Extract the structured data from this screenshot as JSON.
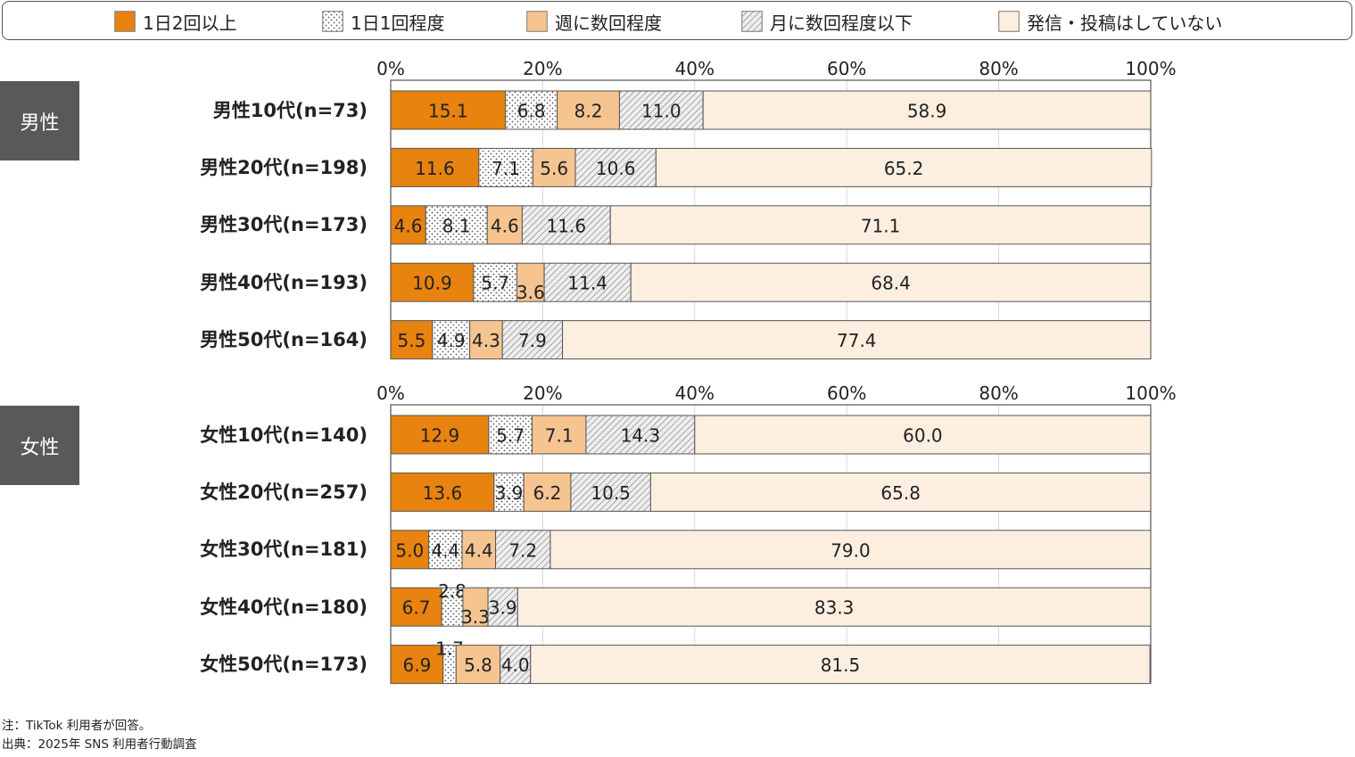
{
  "chart_data": {
    "type": "bar",
    "orientation": "horizontal",
    "stacked": true,
    "xlim": [
      0,
      100
    ],
    "x_ticks": [
      "0%",
      "20%",
      "40%",
      "60%",
      "80%",
      "100%"
    ],
    "legend_position": "top",
    "series": [
      {
        "name": "1日2回以上",
        "color": "#e8830f",
        "pattern": "solid"
      },
      {
        "name": "1日1回程度",
        "color": "#ffffff",
        "pattern": "dots"
      },
      {
        "name": "週に数回程度",
        "color": "#f5c490",
        "pattern": "solid"
      },
      {
        "name": "月に数回程度以下",
        "color": "#e6e6e6",
        "pattern": "hatch"
      },
      {
        "name": "発信・投稿はしていない",
        "color": "#fdefe0",
        "pattern": "solid"
      }
    ],
    "groups": [
      {
        "label": "男性",
        "rows": [
          {
            "label": "男性10代(n=73)",
            "values": [
              15.1,
              6.8,
              8.2,
              11.0,
              58.9
            ],
            "value_labels": [
              "15.1",
              "6.8",
              "8.2",
              "11.0",
              "58.9"
            ]
          },
          {
            "label": "男性20代(n=198)",
            "values": [
              11.6,
              7.1,
              5.6,
              10.6,
              65.2
            ],
            "value_labels": [
              "11.6",
              "7.1",
              "5.6",
              "10.6",
              "65.2"
            ]
          },
          {
            "label": "男性30代(n=173)",
            "values": [
              4.6,
              8.1,
              4.6,
              11.6,
              71.1
            ],
            "value_labels": [
              "4.6",
              "8.1",
              "4.6",
              "11.6",
              "71.1"
            ]
          },
          {
            "label": "男性40代(n=193)",
            "values": [
              10.9,
              5.7,
              3.6,
              11.4,
              68.4
            ],
            "value_labels": [
              "10.9",
              "5.7",
              "3.6",
              "11.4",
              "68.4"
            ]
          },
          {
            "label": "男性50代(n=164)",
            "values": [
              5.5,
              4.9,
              4.3,
              7.9,
              77.4
            ],
            "value_labels": [
              "5.5",
              "4.9",
              "4.3",
              "7.9",
              "77.4"
            ]
          }
        ]
      },
      {
        "label": "女性",
        "rows": [
          {
            "label": "女性10代(n=140)",
            "values": [
              12.9,
              5.7,
              7.1,
              14.3,
              60.0
            ],
            "value_labels": [
              "12.9",
              "5.7",
              "7.1",
              "14.3",
              "60.0"
            ]
          },
          {
            "label": "女性20代(n=257)",
            "values": [
              13.6,
              3.9,
              6.2,
              10.5,
              65.8
            ],
            "value_labels": [
              "13.6",
              "3.9",
              "6.2",
              "10.5",
              "65.8"
            ]
          },
          {
            "label": "女性30代(n=181)",
            "values": [
              5.0,
              4.4,
              4.4,
              7.2,
              79.0
            ],
            "value_labels": [
              "5.0",
              "4.4",
              "4.4",
              "7.2",
              "79.0"
            ]
          },
          {
            "label": "女性40代(n=180)",
            "values": [
              6.7,
              2.8,
              3.3,
              3.9,
              83.3
            ],
            "value_labels": [
              "6.7",
              "2.8",
              "3.3",
              "3.9",
              "83.3"
            ]
          },
          {
            "label": "女性50代(n=173)",
            "values": [
              6.9,
              1.7,
              5.8,
              4.0,
              81.5
            ],
            "value_labels": [
              "6.9",
              "1.7",
              "5.8",
              "4.0",
              "81.5"
            ]
          }
        ]
      }
    ]
  },
  "notes": {
    "note": "注：TikTok 利用者が回答。",
    "source": "出典：2025年 SNS 利用者行動調査"
  }
}
